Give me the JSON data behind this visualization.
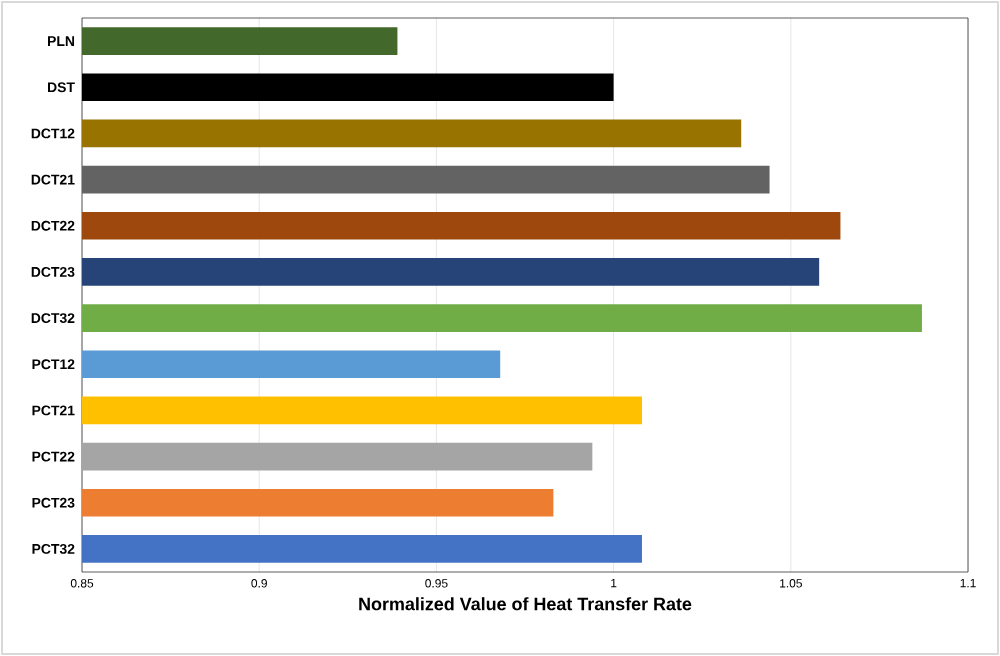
{
  "chart_data": {
    "type": "bar",
    "orientation": "horizontal",
    "xlabel": "Normalized Value of Heat Transfer Rate",
    "categories": [
      "PLN",
      "DST",
      "DCT12",
      "DCT21",
      "DCT22",
      "DCT23",
      "DCT32",
      "PCT12",
      "PCT21",
      "PCT22",
      "PCT23",
      "PCT32"
    ],
    "values": [
      0.939,
      1.0,
      1.036,
      1.044,
      1.064,
      1.058,
      1.087,
      0.968,
      1.008,
      0.994,
      0.983,
      1.008
    ],
    "colors": [
      "#43682b",
      "#000000",
      "#997300",
      "#636363",
      "#9e480e",
      "#264478",
      "#70ad47",
      "#5b9bd5",
      "#ffc000",
      "#a5a5a5",
      "#ed7d31",
      "#4472c4"
    ],
    "xlim": [
      0.85,
      1.1
    ],
    "xticks": [
      0.85,
      0.9,
      0.95,
      1,
      1.05,
      1.1
    ],
    "grid": "x"
  }
}
